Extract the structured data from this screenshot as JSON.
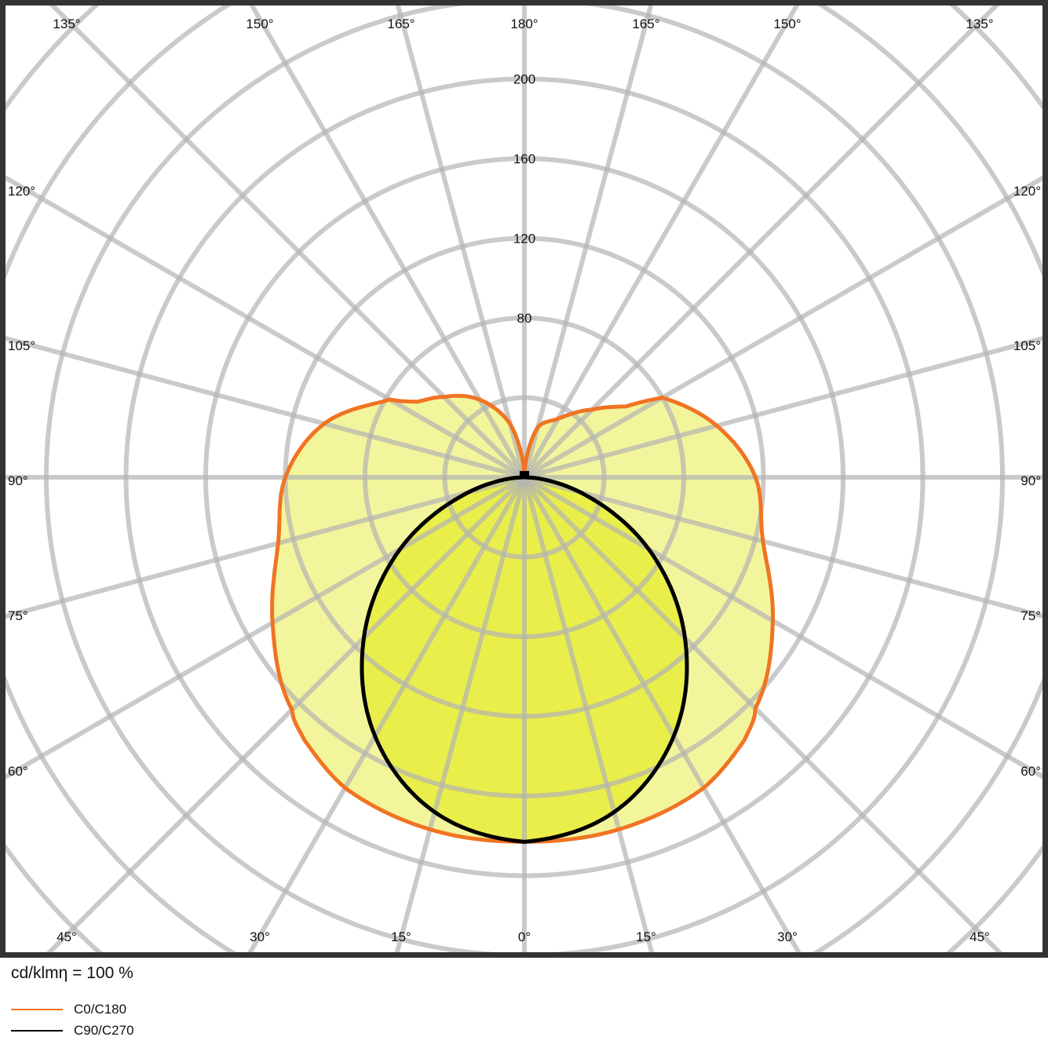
{
  "chart_data": {
    "type": "polar",
    "unit_label": "cd/klmη = 100 %",
    "radial_ticks": [
      80,
      120,
      160,
      200
    ],
    "radial_rings": [
      40,
      80,
      120,
      160,
      200,
      240,
      280,
      320,
      360
    ],
    "angle_step_deg": 15,
    "angle_labels": {
      "top": [
        "135°",
        "150°",
        "165°",
        "180°",
        "165°",
        "150°",
        "135°"
      ],
      "left": [
        "120°",
        "105°",
        "90°",
        "75°",
        "60°"
      ],
      "right": [
        "120°",
        "105°",
        "90°",
        "75°",
        "60°"
      ],
      "bottom": [
        "45°",
        "30°",
        "15°",
        "0°",
        "15°",
        "30°",
        "45°"
      ]
    },
    "grid": true,
    "legend_placement": "bottom-left",
    "series": [
      {
        "name": "C0/C180",
        "color": "#f07423",
        "fill": "#f3f59c",
        "gamma": [
          0,
          15,
          30,
          40,
          45,
          60,
          75,
          90,
          105,
          120,
          125,
          135,
          150,
          165,
          175,
          180
        ],
        "right_values": [
          183,
          183,
          180,
          172,
          164,
          144,
          124,
          116,
          100,
          80,
          62,
          48,
          34,
          26,
          8,
          0
        ],
        "left_values": [
          183,
          183,
          180,
          172,
          165,
          146,
          128,
          120,
          104,
          78,
          66,
          57,
          45,
          28,
          8,
          0
        ]
      },
      {
        "name": "C90/C270",
        "color": "#000000",
        "fill": "#eaee4a",
        "gamma": [
          0,
          15,
          30,
          45,
          60,
          75,
          90
        ],
        "right_values": [
          183,
          174,
          150,
          114,
          72,
          29,
          0
        ],
        "left_values": [
          183,
          174,
          150,
          114,
          72,
          29,
          0
        ]
      }
    ]
  }
}
